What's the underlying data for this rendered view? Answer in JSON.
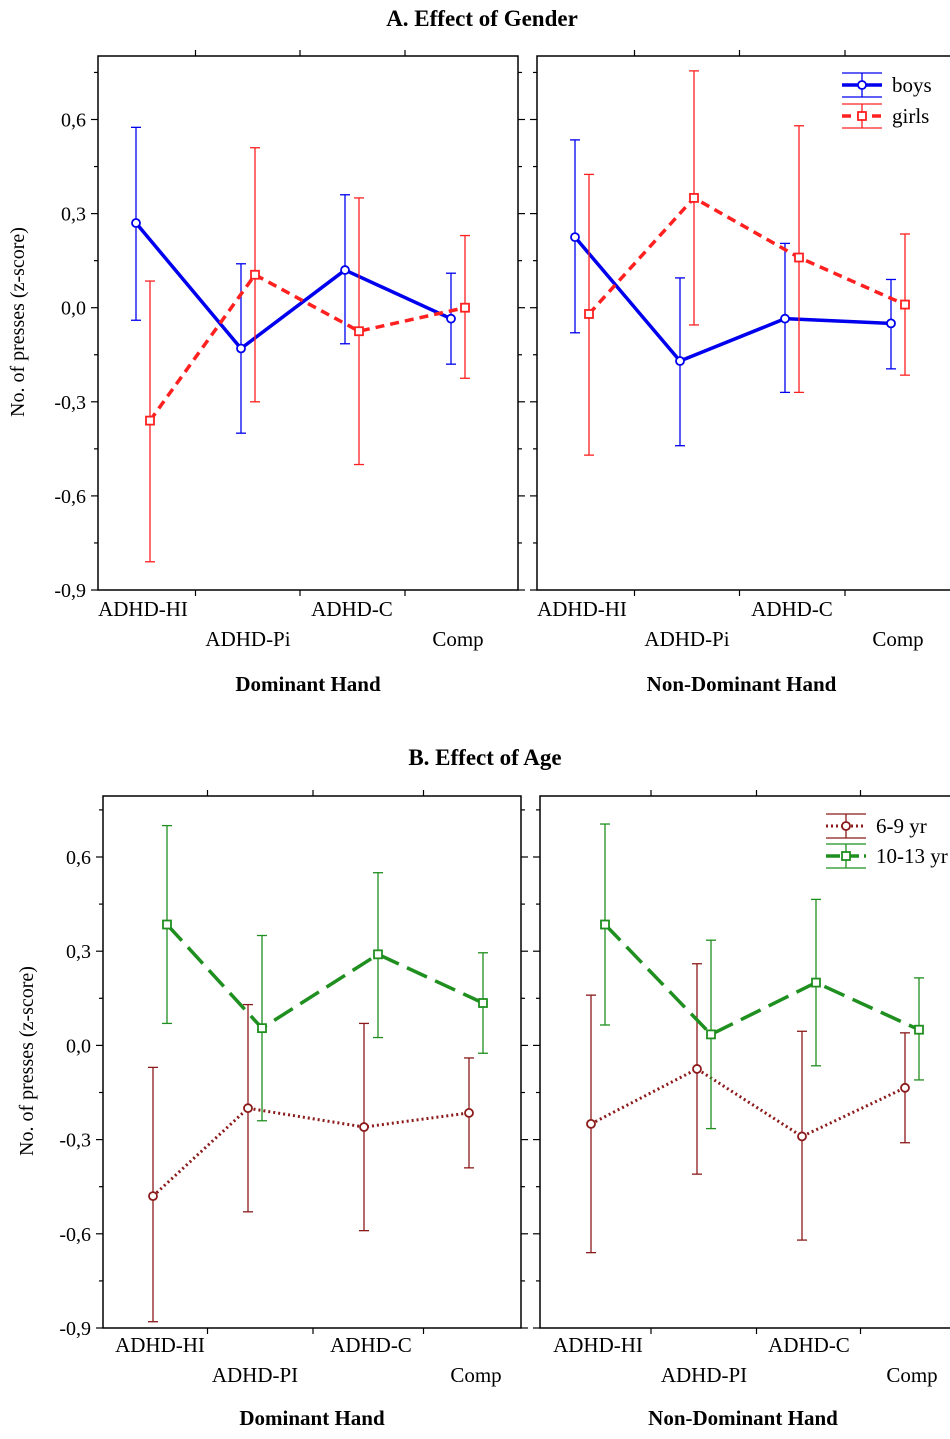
{
  "panels": [
    {
      "title": "A. Effect of Gender",
      "ylabel": "No. of presses (z-score)",
      "ylim": [
        -0.9,
        0.75
      ],
      "yticks": [
        "0,6",
        "0,3",
        "0,0",
        "-0,3",
        "-0,6",
        "-0,9"
      ],
      "categories": [
        "ADHD-HI",
        "ADHD-Pi",
        "ADHD-C",
        "Comp"
      ],
      "hands": [
        "Dominant Hand",
        "Non-Dominant Hand"
      ],
      "legend": [
        "boys",
        "girls"
      ]
    },
    {
      "title": "B. Effect of Age",
      "ylabel": "No. of presses (z-score)",
      "ylim": [
        -0.9,
        0.75
      ],
      "yticks": [
        "0,6",
        "0,3",
        "0,0",
        "-0,3",
        "-0,6",
        "-0,9"
      ],
      "categories": [
        "ADHD-HI",
        "ADHD-PI",
        "ADHD-C",
        "Comp"
      ],
      "hands": [
        "Dominant Hand",
        "Non-Dominant Hand"
      ],
      "legend": [
        "6-9 yr",
        "10-13 yr"
      ]
    }
  ],
  "chart_data": [
    {
      "type": "line",
      "title": "A. Effect of Gender",
      "ylabel": "No. of presses (z-score)",
      "ylim": [
        -0.9,
        0.75
      ],
      "legend_placement": "top-right",
      "facets": [
        {
          "xlabel": "Dominant Hand",
          "categories": [
            "ADHD-HI",
            "ADHD-Pi",
            "ADHD-C",
            "Comp"
          ],
          "series": [
            {
              "name": "boys",
              "color": "#0000ee",
              "marker": "circle",
              "dash": "solid",
              "values": [
                0.27,
                -0.13,
                0.12,
                -0.035
              ],
              "lower": [
                -0.04,
                -0.4,
                -0.115,
                -0.18
              ],
              "upper": [
                0.575,
                0.14,
                0.36,
                0.11
              ]
            },
            {
              "name": "girls",
              "color": "#ff2020",
              "marker": "square",
              "dash": "dashed",
              "values": [
                -0.36,
                0.105,
                -0.075,
                0.0
              ],
              "lower": [
                -0.81,
                -0.3,
                -0.5,
                -0.225
              ],
              "upper": [
                0.085,
                0.51,
                0.35,
                0.23
              ]
            }
          ]
        },
        {
          "xlabel": "Non-Dominant Hand",
          "categories": [
            "ADHD-HI",
            "ADHD-Pi",
            "ADHD-C",
            "Comp"
          ],
          "series": [
            {
              "name": "boys",
              "color": "#0000ee",
              "marker": "circle",
              "dash": "solid",
              "values": [
                0.225,
                -0.17,
                -0.035,
                -0.05
              ],
              "lower": [
                -0.08,
                -0.44,
                -0.27,
                -0.195
              ],
              "upper": [
                0.535,
                0.095,
                0.205,
                0.09
              ]
            },
            {
              "name": "girls",
              "color": "#ff2020",
              "marker": "square",
              "dash": "dashed",
              "values": [
                -0.02,
                0.35,
                0.16,
                0.01
              ],
              "lower": [
                -0.47,
                -0.055,
                -0.27,
                -0.215
              ],
              "upper": [
                0.425,
                0.755,
                0.58,
                0.235
              ]
            }
          ]
        }
      ]
    },
    {
      "type": "line",
      "title": "B. Effect of Age",
      "ylabel": "No. of presses (z-score)",
      "ylim": [
        -0.9,
        0.75
      ],
      "legend_placement": "top-right",
      "facets": [
        {
          "xlabel": "Dominant Hand",
          "categories": [
            "ADHD-HI",
            "ADHD-PI",
            "ADHD-C",
            "Comp"
          ],
          "series": [
            {
              "name": "6-9 yr",
              "color": "#8b1a1a",
              "marker": "circle",
              "dash": "dotted",
              "values": [
                -0.48,
                -0.2,
                -0.26,
                -0.215
              ],
              "lower": [
                -0.88,
                -0.53,
                -0.59,
                -0.39
              ],
              "upper": [
                -0.07,
                0.13,
                0.07,
                -0.04
              ]
            },
            {
              "name": "10-13 yr",
              "color": "#1f8f1f",
              "marker": "square",
              "dash": "longdash",
              "values": [
                0.385,
                0.055,
                0.29,
                0.135
              ],
              "lower": [
                0.07,
                -0.24,
                0.025,
                -0.025
              ],
              "upper": [
                0.7,
                0.35,
                0.55,
                0.295
              ]
            }
          ]
        },
        {
          "xlabel": "Non-Dominant Hand",
          "categories": [
            "ADHD-HI",
            "ADHD-PI",
            "ADHD-C",
            "Comp"
          ],
          "series": [
            {
              "name": "6-9 yr",
              "color": "#8b1a1a",
              "marker": "circle",
              "dash": "dotted",
              "values": [
                -0.25,
                -0.075,
                -0.29,
                -0.135
              ],
              "lower": [
                -0.66,
                -0.41,
                -0.62,
                -0.31
              ],
              "upper": [
                0.16,
                0.26,
                0.045,
                0.04
              ]
            },
            {
              "name": "10-13 yr",
              "color": "#1f8f1f",
              "marker": "square",
              "dash": "longdash",
              "values": [
                0.385,
                0.035,
                0.2,
                0.05
              ],
              "lower": [
                0.065,
                -0.265,
                -0.065,
                -0.11
              ],
              "upper": [
                0.705,
                0.335,
                0.465,
                0.215
              ]
            }
          ]
        }
      ]
    }
  ]
}
